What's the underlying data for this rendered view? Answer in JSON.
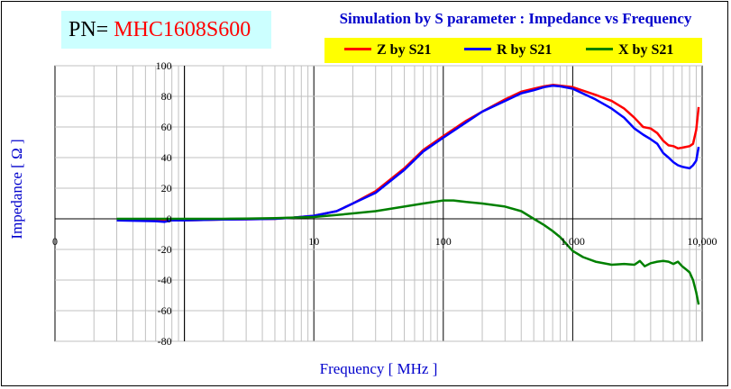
{
  "part_number": {
    "label": "PN=",
    "value": "MHC1608S600"
  },
  "chart_data": {
    "type": "line",
    "title": "Simulation by S parameter : Impedance vs Frequency",
    "xlabel": "Frequency [ MHz ]",
    "ylabel": "Impedance [ Ω ]",
    "xscale": "log",
    "xlim": [
      0.1,
      10000
    ],
    "ylim": [
      -80,
      100
    ],
    "grid": true,
    "legend_position": "top-right",
    "x_tick_labels": [
      {
        "x": 0.1,
        "label": "0"
      },
      {
        "x": 10,
        "label": "10"
      },
      {
        "x": 100,
        "label": "100"
      },
      {
        "x": 1000,
        "label": "1,000"
      },
      {
        "x": 10000,
        "label": "10,000"
      }
    ],
    "y_ticks": [
      100,
      80,
      60,
      40,
      20,
      0,
      -20,
      -40,
      -60,
      -80
    ],
    "series": [
      {
        "name": "Z by S21",
        "color": "#ff0000",
        "points": [
          [
            0.3,
            -1
          ],
          [
            0.6,
            -1
          ],
          [
            1,
            -1
          ],
          [
            2,
            -0.5
          ],
          [
            3,
            -0.3
          ],
          [
            5,
            0
          ],
          [
            7,
            0.8
          ],
          [
            10,
            2
          ],
          [
            15,
            5
          ],
          [
            20,
            10
          ],
          [
            30,
            18
          ],
          [
            50,
            33
          ],
          [
            70,
            45
          ],
          [
            100,
            54
          ],
          [
            150,
            64
          ],
          [
            200,
            70
          ],
          [
            300,
            78
          ],
          [
            400,
            83
          ],
          [
            500,
            85
          ],
          [
            600,
            86.5
          ],
          [
            700,
            87.5
          ],
          [
            800,
            87
          ],
          [
            1000,
            86
          ],
          [
            1500,
            81
          ],
          [
            2000,
            77
          ],
          [
            2500,
            72
          ],
          [
            3000,
            66
          ],
          [
            3500,
            60
          ],
          [
            4000,
            59
          ],
          [
            4500,
            56
          ],
          [
            5000,
            51
          ],
          [
            5500,
            48
          ],
          [
            6000,
            47.5
          ],
          [
            6500,
            46
          ],
          [
            7000,
            46.5
          ],
          [
            7500,
            47
          ],
          [
            8000,
            47.5
          ],
          [
            8500,
            49
          ],
          [
            9000,
            58
          ],
          [
            9400,
            73
          ]
        ]
      },
      {
        "name": "R by S21",
        "color": "#0000ff",
        "points": [
          [
            0.3,
            -1
          ],
          [
            0.6,
            -1.5
          ],
          [
            0.7,
            -2
          ],
          [
            0.8,
            -1
          ],
          [
            1,
            -1
          ],
          [
            2,
            -0.5
          ],
          [
            3,
            -0.3
          ],
          [
            5,
            0
          ],
          [
            7,
            0.8
          ],
          [
            10,
            2
          ],
          [
            15,
            5
          ],
          [
            20,
            10
          ],
          [
            30,
            17
          ],
          [
            50,
            32
          ],
          [
            70,
            44
          ],
          [
            100,
            53
          ],
          [
            150,
            63
          ],
          [
            200,
            70
          ],
          [
            300,
            77
          ],
          [
            400,
            82
          ],
          [
            500,
            84
          ],
          [
            600,
            86
          ],
          [
            700,
            87
          ],
          [
            800,
            86.5
          ],
          [
            1000,
            85
          ],
          [
            1500,
            78
          ],
          [
            2000,
            72
          ],
          [
            2500,
            66
          ],
          [
            3000,
            59
          ],
          [
            3500,
            55
          ],
          [
            4000,
            52
          ],
          [
            4500,
            49
          ],
          [
            5000,
            43
          ],
          [
            5500,
            40
          ],
          [
            6000,
            37
          ],
          [
            6500,
            35
          ],
          [
            7000,
            34
          ],
          [
            7500,
            33.5
          ],
          [
            8000,
            33
          ],
          [
            8500,
            35
          ],
          [
            9000,
            38
          ],
          [
            9400,
            47
          ]
        ]
      },
      {
        "name": "X by S21",
        "color": "#008000",
        "points": [
          [
            0.3,
            0
          ],
          [
            0.6,
            0
          ],
          [
            1,
            0
          ],
          [
            2,
            0
          ],
          [
            3,
            0.2
          ],
          [
            5,
            0.5
          ],
          [
            7,
            0.8
          ],
          [
            10,
            1.2
          ],
          [
            15,
            2.5
          ],
          [
            20,
            3.5
          ],
          [
            30,
            5
          ],
          [
            50,
            8
          ],
          [
            70,
            10
          ],
          [
            100,
            12
          ],
          [
            120,
            12
          ],
          [
            150,
            11
          ],
          [
            200,
            10
          ],
          [
            300,
            8
          ],
          [
            400,
            5
          ],
          [
            500,
            0
          ],
          [
            600,
            -4
          ],
          [
            700,
            -8
          ],
          [
            800,
            -12
          ],
          [
            1000,
            -21
          ],
          [
            1200,
            -25
          ],
          [
            1500,
            -28
          ],
          [
            2000,
            -30
          ],
          [
            2500,
            -29.5
          ],
          [
            3000,
            -30
          ],
          [
            3300,
            -27.5
          ],
          [
            3600,
            -31
          ],
          [
            4000,
            -29
          ],
          [
            4500,
            -28
          ],
          [
            5000,
            -27.5
          ],
          [
            5500,
            -28
          ],
          [
            6000,
            -29.5
          ],
          [
            6500,
            -28
          ],
          [
            7000,
            -31
          ],
          [
            7500,
            -33
          ],
          [
            8000,
            -35
          ],
          [
            8500,
            -40
          ],
          [
            9000,
            -48
          ],
          [
            9400,
            -56
          ]
        ]
      }
    ]
  }
}
